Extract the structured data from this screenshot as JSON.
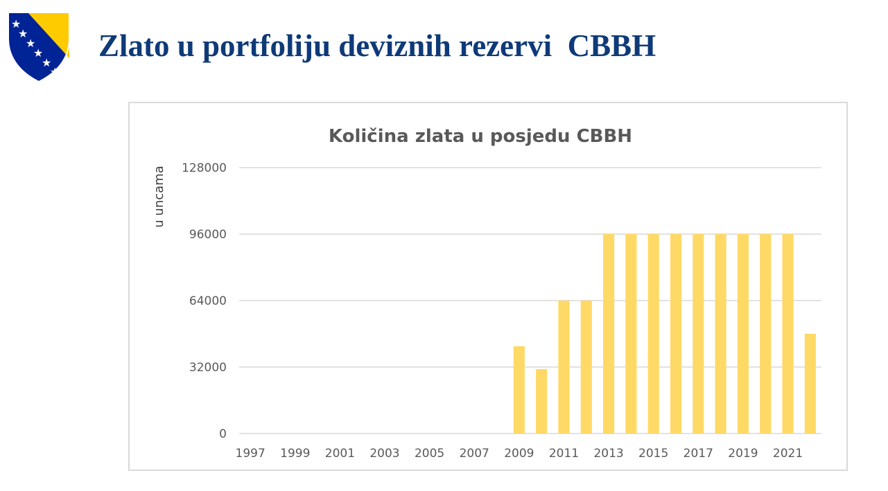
{
  "slide": {
    "title": "Zlato u portfoliju deviznih rezervi  CBBH",
    "crest": "bosnia-herzegovina-coat-of-arms"
  },
  "colors": {
    "title": "#0e3a78",
    "bar": "#ffd966",
    "grid": "#d9d9d9",
    "text": "#595959",
    "crest_blue": "#002395",
    "crest_yellow": "#fecb00"
  },
  "chart_data": {
    "type": "bar",
    "title": "Količina zlata u posjedu CBBH",
    "xlabel": "",
    "ylabel": "u uncama",
    "ylim": [
      0,
      128000
    ],
    "yticks": [
      0,
      32000,
      64000,
      96000,
      128000
    ],
    "grid": true,
    "legend": "none",
    "categories": [
      "1997",
      "1998",
      "1999",
      "2000",
      "2001",
      "2002",
      "2003",
      "2004",
      "2005",
      "2006",
      "2007",
      "2008",
      "2009",
      "2010",
      "2011",
      "2012",
      "2013",
      "2014",
      "2015",
      "2016",
      "2017",
      "2018",
      "2019",
      "2020",
      "2021",
      "2022"
    ],
    "xtick_labels": [
      "1997",
      "1999",
      "2001",
      "2003",
      "2005",
      "2007",
      "2009",
      "2011",
      "2013",
      "2015",
      "2017",
      "2019",
      "2021"
    ],
    "values": [
      0,
      0,
      0,
      0,
      0,
      0,
      0,
      0,
      0,
      0,
      0,
      0,
      42000,
      31000,
      64000,
      64000,
      96000,
      96000,
      96000,
      96000,
      96000,
      96000,
      96000,
      96000,
      96000,
      48000
    ]
  }
}
